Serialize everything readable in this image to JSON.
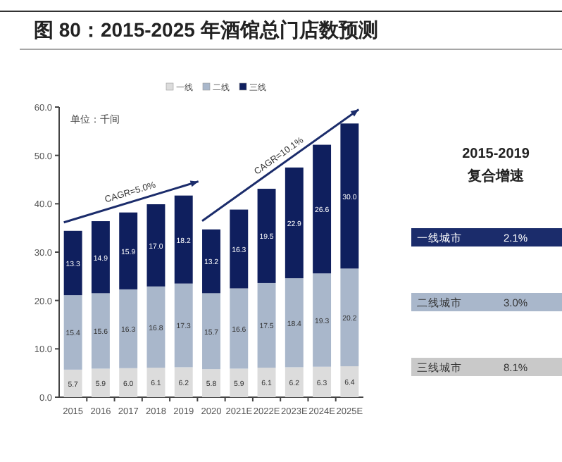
{
  "chart_data": [
    {
      "type": "bar",
      "stacked": true,
      "title": "图 80：2015-2025 年酒馆总门店数预测",
      "categories": [
        "2015",
        "2016",
        "2017",
        "2018",
        "2019",
        "2020",
        "2021E",
        "2022E",
        "2023E",
        "2024E",
        "2025E"
      ],
      "series": [
        {
          "name": "一线",
          "color": "#dcdcdc",
          "values": [
            5.7,
            5.9,
            6.0,
            6.1,
            6.2,
            5.8,
            5.9,
            6.1,
            6.2,
            6.3,
            6.4
          ],
          "value_labels": [
            "5.7",
            "5.9",
            "6.0",
            "6.1",
            "6.2",
            "5.8",
            "5.9",
            "6.1",
            "6.2",
            "6.3",
            "6.4"
          ]
        },
        {
          "name": "二线",
          "color": "#a9b7cb",
          "values": [
            15.4,
            15.6,
            16.3,
            16.8,
            17.3,
            15.7,
            16.6,
            17.5,
            18.4,
            19.3,
            20.2
          ],
          "value_labels": [
            "15.4",
            "15.6",
            "16.3",
            "16.8",
            "17.3",
            "15.7",
            "16.6",
            "17.5",
            "18.4",
            "19.3",
            "20.2"
          ]
        },
        {
          "name": "三线",
          "color": "#0f1f5e",
          "values": [
            13.3,
            14.9,
            15.9,
            17.0,
            18.2,
            13.2,
            16.3,
            19.5,
            22.9,
            26.6,
            30.0
          ],
          "value_labels": [
            "13.3",
            "14.9",
            "15.9",
            "17.0",
            "18.2",
            "13.2",
            "16.3",
            "19.5",
            "22.9",
            "26.6",
            "30.0"
          ]
        }
      ],
      "ylim": [
        0,
        60
      ],
      "yticks": [
        {
          "value": 0,
          "label": "0.0"
        },
        {
          "value": 10,
          "label": "10.0"
        },
        {
          "value": 20,
          "label": "20.0"
        },
        {
          "value": 30,
          "label": "30.0"
        },
        {
          "value": 40,
          "label": "40.0"
        },
        {
          "value": 50,
          "label": "50.0"
        },
        {
          "value": 60,
          "label": "60.0"
        }
      ],
      "legend": "top",
      "grid": false,
      "annotations": [
        "单位：千间",
        "CAGR=5.0%",
        "CAGR=10.1%"
      ]
    },
    {
      "type": "other",
      "title": "2015-2019 复合增速",
      "categories": [
        "一线城市",
        "二线城市",
        "三线城市"
      ],
      "values": [
        2.1,
        3.0,
        8.1
      ],
      "value_labels": [
        "2.1%",
        "3.0%",
        "8.1%"
      ],
      "colors": [
        "#1b2c6b",
        "#a9b7cb",
        "#c9c9c9"
      ]
    }
  ]
}
